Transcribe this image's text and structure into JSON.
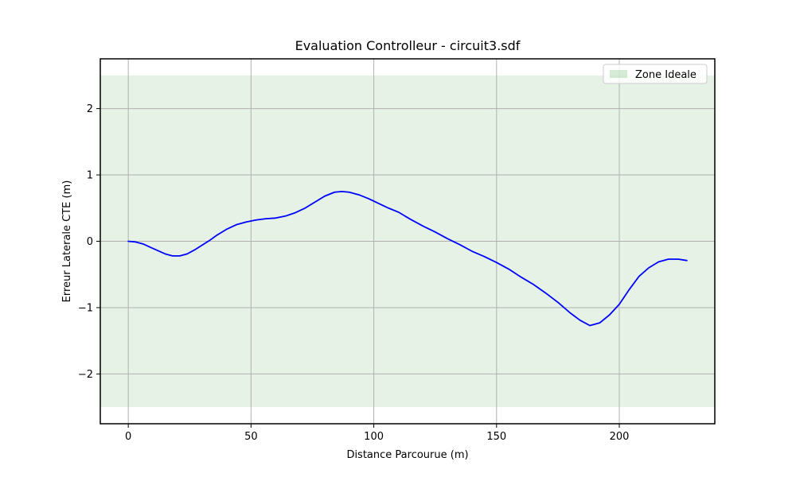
{
  "chart_data": {
    "type": "line",
    "title": "Evaluation Controlleur - circuit3.sdf",
    "xlabel": "Distance Parcourue (m)",
    "ylabel": "Erreur Laterale CTE (m)",
    "xlim": [
      -11.4,
      238.9
    ],
    "ylim": [
      -2.75,
      2.75
    ],
    "xticks": [
      0,
      50,
      100,
      150,
      200
    ],
    "yticks": [
      -2,
      -1,
      0,
      1,
      2
    ],
    "grid": true,
    "grid_color": "#b0b0b0",
    "axes_edge_color": "#000000",
    "background_color": "#ffffff",
    "band": {
      "label": "Zone Ideale",
      "ymin": -2.5,
      "ymax": 2.5,
      "color": "#008000",
      "alpha": 0.1
    },
    "legend": {
      "position": "upper right",
      "entries": [
        {
          "label": "Zone Ideale",
          "swatch_color": "#008000",
          "swatch_alpha": 0.16
        }
      ]
    },
    "series": [
      {
        "name": "Erreur Laterale CTE",
        "color": "#0000ff",
        "linewidth": 1.8,
        "x": [
          0,
          3,
          6,
          9,
          12,
          15,
          18,
          21,
          24,
          27,
          30,
          33,
          36,
          40,
          44,
          48,
          52,
          56,
          60,
          64,
          68,
          72,
          76,
          80,
          84,
          87,
          90,
          94,
          98,
          102,
          106,
          110,
          115,
          120,
          125,
          130,
          135,
          140,
          145,
          150,
          155,
          160,
          165,
          170,
          175,
          180,
          184,
          188,
          192,
          196,
          200,
          204,
          208,
          212,
          216,
          220,
          224,
          227.5
        ],
        "y": [
          0.0,
          -0.01,
          -0.04,
          -0.09,
          -0.14,
          -0.19,
          -0.22,
          -0.22,
          -0.19,
          -0.13,
          -0.06,
          0.01,
          0.09,
          0.18,
          0.25,
          0.29,
          0.32,
          0.34,
          0.35,
          0.38,
          0.43,
          0.5,
          0.59,
          0.68,
          0.74,
          0.75,
          0.74,
          0.7,
          0.64,
          0.57,
          0.5,
          0.44,
          0.33,
          0.23,
          0.14,
          0.04,
          -0.05,
          -0.15,
          -0.23,
          -0.32,
          -0.42,
          -0.54,
          -0.65,
          -0.78,
          -0.92,
          -1.08,
          -1.19,
          -1.27,
          -1.23,
          -1.11,
          -0.95,
          -0.73,
          -0.53,
          -0.4,
          -0.31,
          -0.27,
          -0.27,
          -0.29
        ]
      }
    ]
  }
}
